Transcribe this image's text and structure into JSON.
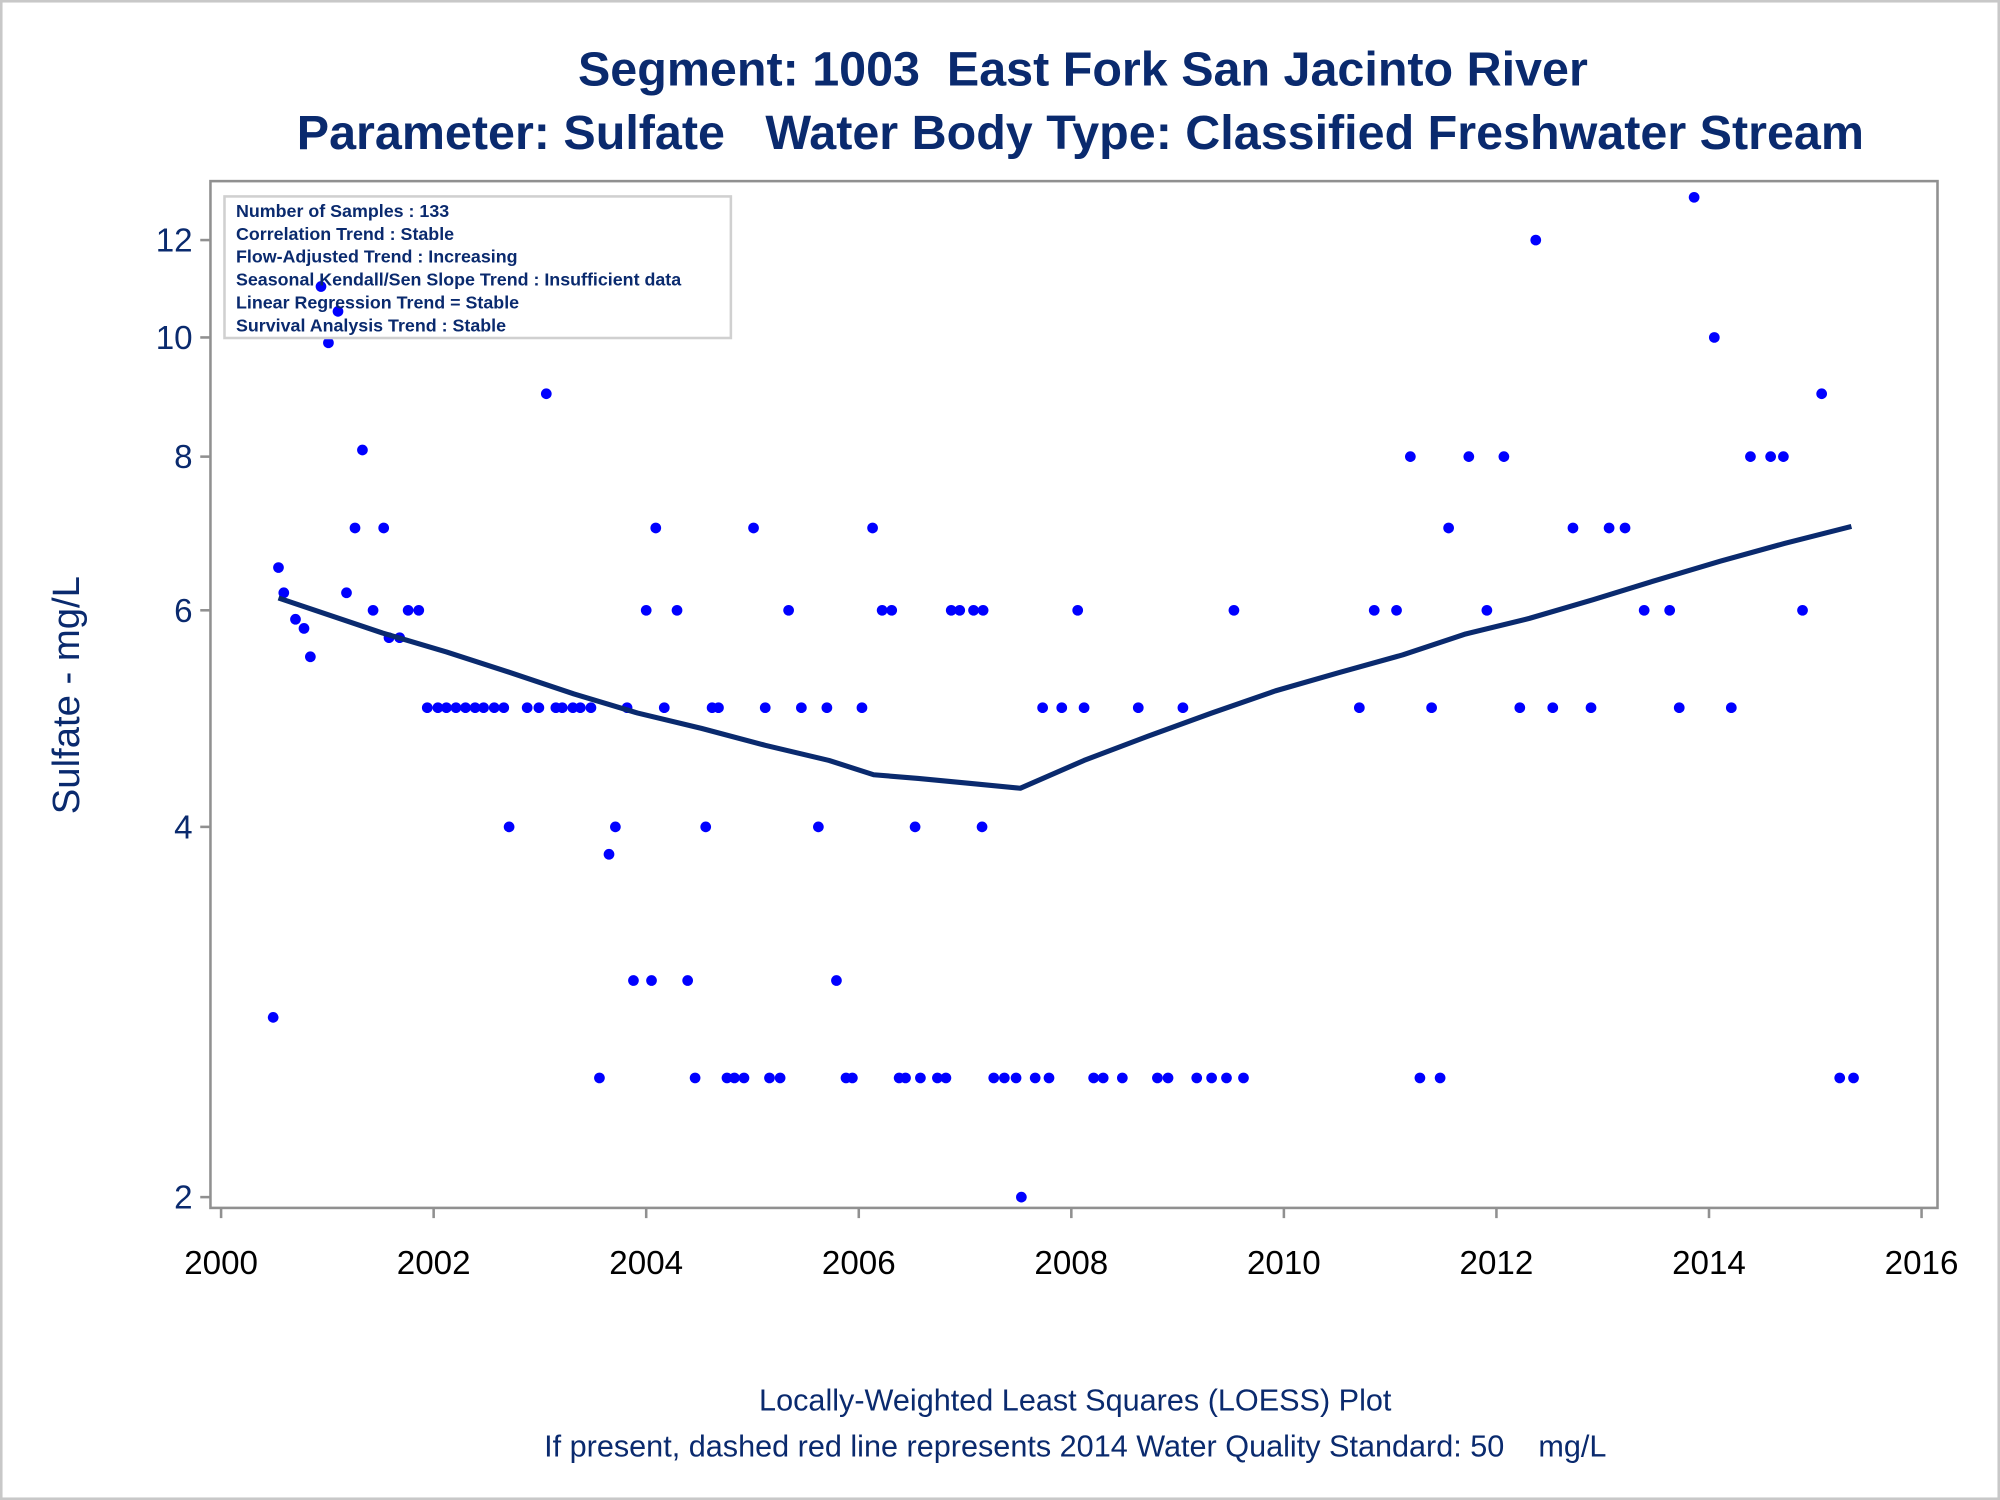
{
  "chart_data": {
    "type": "scatter",
    "title": "Segment: 1003  East Fork San Jacinto River",
    "subtitle": "Parameter: Sulfate   Water Body Type: Classified Freshwater Stream",
    "ylabel": "Sulfate - mg/L",
    "annotations": [
      "Number of Samples : 133",
      "Correlation Trend : Stable",
      "Flow-Adjusted Trend : Increasing",
      "Seasonal Kendall/Sen Slope Trend : Insufficient data",
      "Linear Regression Trend = Stable",
      "Survival Analysis Trend : Stable"
    ],
    "footnotes": [
      "Locally-Weighted Least Squares (LOESS) Plot",
      "If present, dashed red line represents 2014 Water Quality Standard: 50    mg/L"
    ],
    "xlim": [
      1999.9,
      2016.15
    ],
    "xticks": [
      2000,
      2002,
      2004,
      2006,
      2008,
      2010,
      2012,
      2014,
      2016
    ],
    "ylim": [
      1.96,
      13.4
    ],
    "yticks": [
      2,
      4,
      6,
      8,
      10,
      12
    ],
    "ylog": true,
    "series": [
      {
        "mode": "markers",
        "color": "#0000ff",
        "x": [
          2000.49,
          2000.54,
          2000.59,
          2000.7,
          2000.78,
          2000.84,
          2000.94,
          2001.01,
          2001.1,
          2001.18,
          2001.26,
          2001.33,
          2001.43,
          2001.53,
          2001.58,
          2001.68,
          2001.76,
          2001.86,
          2001.94,
          2002.04,
          2002.12,
          2002.21,
          2002.3,
          2002.39,
          2002.47,
          2002.57,
          2002.66,
          2002.71,
          2002.88,
          2002.99,
          2003.06,
          2003.15,
          2003.21,
          2003.31,
          2003.38,
          2003.48,
          2003.56,
          2003.65,
          2003.71,
          2003.82,
          2003.88,
          2004.0,
          2004.05,
          2004.09,
          2004.17,
          2004.29,
          2004.39,
          2004.46,
          2004.56,
          2004.62,
          2004.68,
          2004.76,
          2004.83,
          2004.92,
          2005.01,
          2005.12,
          2005.16,
          2005.26,
          2005.34,
          2005.46,
          2005.62,
          2005.7,
          2005.79,
          2005.88,
          2005.94,
          2006.03,
          2006.13,
          2006.22,
          2006.31,
          2006.38,
          2006.44,
          2006.53,
          2006.58,
          2006.74,
          2006.82,
          2006.87,
          2006.95,
          2007.08,
          2007.17,
          2007.16,
          2007.27,
          2007.37,
          2007.48,
          2007.53,
          2007.66,
          2007.73,
          2007.79,
          2007.91,
          2008.06,
          2008.12,
          2008.21,
          2008.3,
          2008.48,
          2008.63,
          2008.81,
          2008.91,
          2009.05,
          2009.18,
          2009.32,
          2009.46,
          2009.53,
          2009.62,
          2010.71,
          2010.85,
          2011.06,
          2011.19,
          2011.28,
          2011.39,
          2011.47,
          2011.55,
          2011.74,
          2011.91,
          2012.07,
          2012.22,
          2012.37,
          2012.53,
          2012.72,
          2012.89,
          2013.06,
          2013.21,
          2013.39,
          2013.63,
          2013.72,
          2013.86,
          2014.05,
          2014.21,
          2014.39,
          2014.58,
          2014.7,
          2014.88,
          2015.06,
          2015.23,
          2015.36
        ],
        "values": [
          2.8,
          6.5,
          6.2,
          5.9,
          5.8,
          5.5,
          11,
          9.9,
          10.5,
          6.2,
          7,
          8.1,
          6,
          7,
          5.7,
          5.7,
          6,
          6,
          5,
          5,
          5,
          5,
          5,
          5,
          5,
          5,
          5,
          4,
          5,
          5,
          9,
          5,
          5,
          5,
          5,
          5,
          2.5,
          3.8,
          4,
          5,
          3,
          6,
          3,
          7,
          5,
          6,
          3,
          2.5,
          4,
          5,
          5,
          2.5,
          2.5,
          2.5,
          7,
          5,
          2.5,
          2.5,
          6,
          5,
          4,
          5,
          3,
          2.5,
          2.5,
          5,
          7,
          6,
          6,
          2.5,
          2.5,
          4,
          2.5,
          2.5,
          2.5,
          6,
          6,
          6,
          6,
          4,
          2.5,
          2.5,
          2.5,
          2,
          2.5,
          5,
          2.5,
          5,
          6,
          5,
          2.5,
          2.5,
          2.5,
          5,
          2.5,
          2.5,
          5,
          2.5,
          2.5,
          2.5,
          6,
          2.5,
          5,
          6,
          6,
          8,
          2.5,
          5,
          2.5,
          7,
          8,
          6,
          8,
          5,
          12,
          5,
          7,
          5,
          7,
          7,
          6,
          6,
          5,
          13,
          10,
          5,
          8,
          8,
          8,
          6,
          9,
          2.5,
          2.5
        ]
      },
      {
        "mode": "line",
        "color": "#0a2a6e",
        "x": [
          2000.54,
          2001.52,
          2002.12,
          2002.72,
          2003.32,
          2003.92,
          2004.52,
          2005.12,
          2005.72,
          2006.14,
          2006.56,
          2007.04,
          2007.52,
          2008.12,
          2008.72,
          2009.32,
          2009.92,
          2010.52,
          2011.12,
          2011.71,
          2012.31,
          2012.91,
          2013.51,
          2014.11,
          2014.71,
          2015.34
        ],
        "values": [
          6.14,
          5.75,
          5.55,
          5.34,
          5.13,
          4.95,
          4.81,
          4.66,
          4.53,
          4.41,
          4.38,
          4.34,
          4.3,
          4.53,
          4.74,
          4.95,
          5.16,
          5.34,
          5.52,
          5.74,
          5.91,
          6.12,
          6.35,
          6.58,
          6.8,
          7.02
        ]
      }
    ]
  }
}
